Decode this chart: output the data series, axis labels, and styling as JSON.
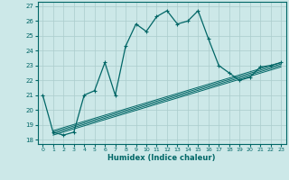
{
  "xlabel": "Humidex (Indice chaleur)",
  "xlim": [
    -0.5,
    23.5
  ],
  "ylim": [
    17.7,
    27.3
  ],
  "xticks": [
    0,
    1,
    2,
    3,
    4,
    5,
    6,
    7,
    8,
    9,
    10,
    11,
    12,
    13,
    14,
    15,
    16,
    17,
    18,
    19,
    20,
    21,
    22,
    23
  ],
  "yticks": [
    18,
    19,
    20,
    21,
    22,
    23,
    24,
    25,
    26,
    27
  ],
  "bg_color": "#cce8e8",
  "line_color": "#006666",
  "grid_color": "#aacccc",
  "main_x": [
    0,
    1,
    2,
    3,
    4,
    5,
    6,
    7,
    8,
    9,
    10,
    11,
    12,
    13,
    14,
    15,
    16,
    17,
    18,
    19,
    20,
    21,
    22,
    23
  ],
  "main_y": [
    21.0,
    18.5,
    18.3,
    18.5,
    21.0,
    21.3,
    23.2,
    21.0,
    24.3,
    25.8,
    25.3,
    26.3,
    26.7,
    25.8,
    26.0,
    26.7,
    24.8,
    23.0,
    22.5,
    22.0,
    22.2,
    22.9,
    23.0,
    23.2
  ],
  "linear_lines": [
    {
      "x": [
        1,
        23
      ],
      "y": [
        18.3,
        22.9
      ]
    },
    {
      "x": [
        1,
        23
      ],
      "y": [
        18.4,
        23.0
      ]
    },
    {
      "x": [
        1,
        23
      ],
      "y": [
        18.5,
        23.1
      ]
    },
    {
      "x": [
        1,
        23
      ],
      "y": [
        18.6,
        23.2
      ]
    }
  ]
}
